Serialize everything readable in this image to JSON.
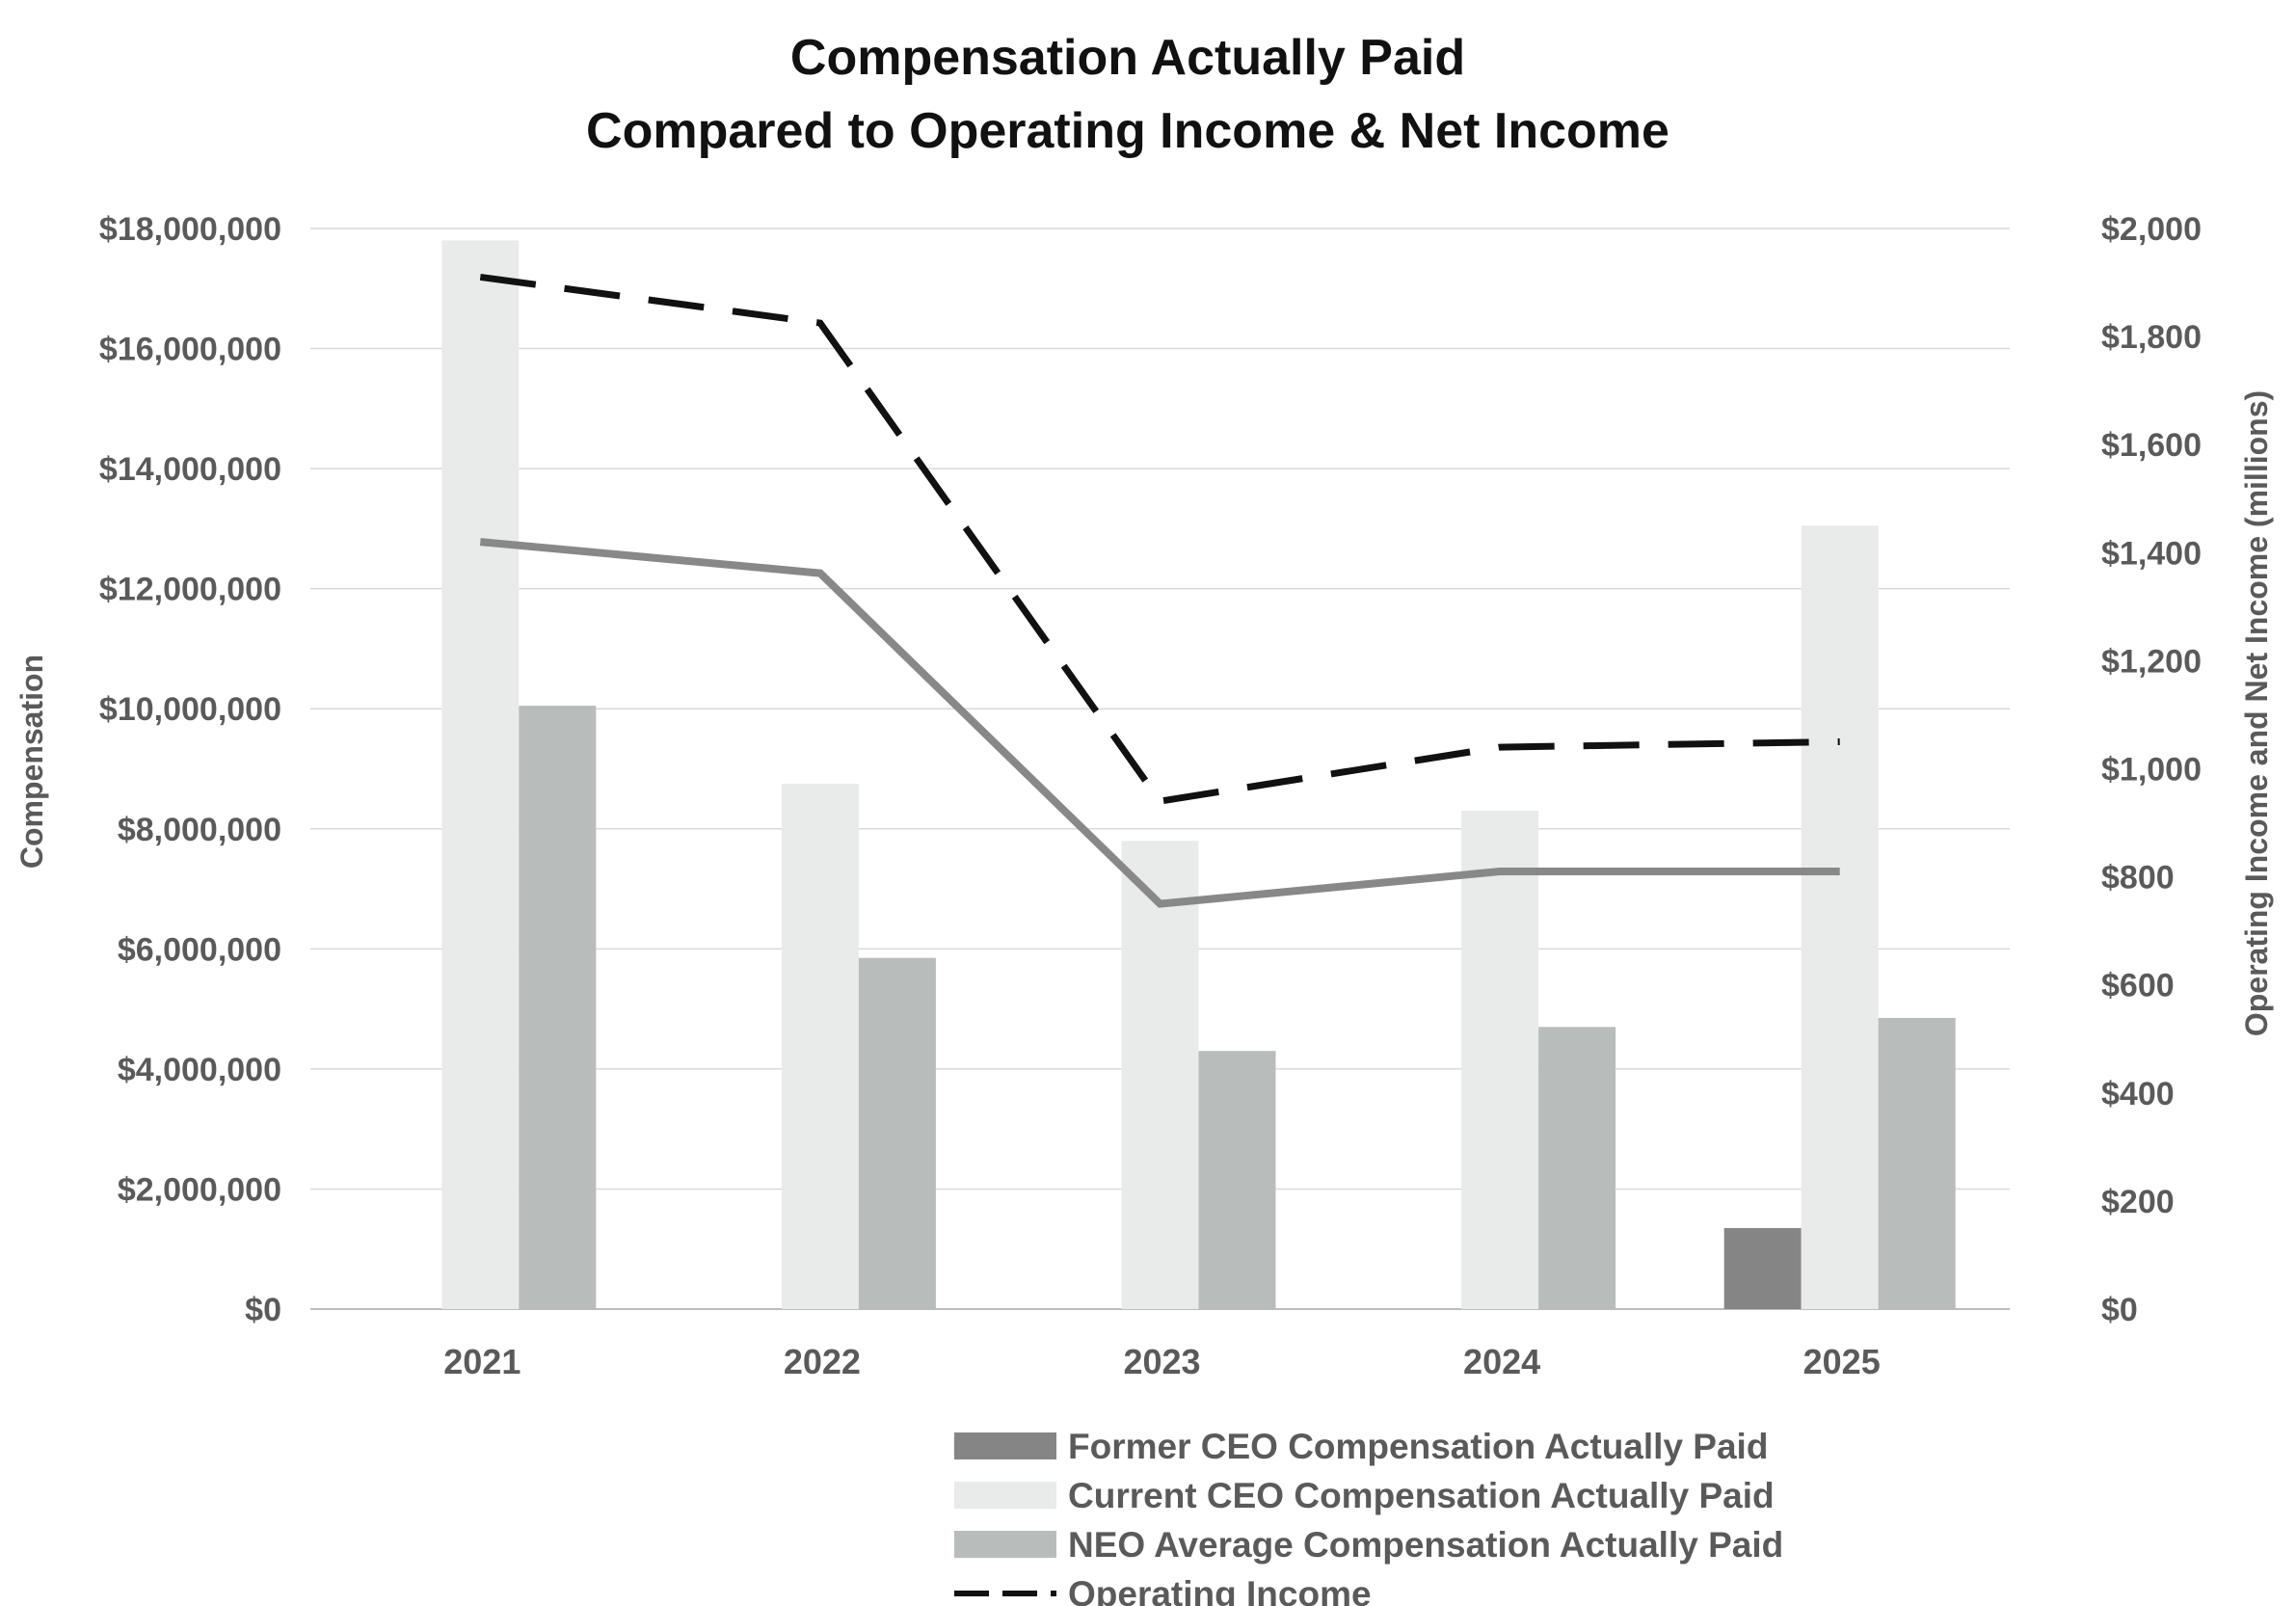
{
  "chart_data": {
    "type": "bar",
    "title": [
      "Compensation Actually Paid",
      "Compared to Operating Income & Net Income"
    ],
    "categories": [
      "2021",
      "2022",
      "2023",
      "2024",
      "2025"
    ],
    "ylabel": "Compensation",
    "y2label": "Operating Income and Net Income (millions)",
    "ylim": [
      0,
      18000000
    ],
    "y2lim": [
      0,
      2000
    ],
    "yticks": [
      {
        "value": 0,
        "label": "$0"
      },
      {
        "value": 2000000,
        "label": "$2,000,000"
      },
      {
        "value": 4000000,
        "label": "$4,000,000"
      },
      {
        "value": 6000000,
        "label": "$6,000,000"
      },
      {
        "value": 8000000,
        "label": "$8,000,000"
      },
      {
        "value": 10000000,
        "label": "$10,000,000"
      },
      {
        "value": 12000000,
        "label": "$12,000,000"
      },
      {
        "value": 14000000,
        "label": "$14,000,000"
      },
      {
        "value": 16000000,
        "label": "$16,000,000"
      },
      {
        "value": 18000000,
        "label": "$18,000,000"
      }
    ],
    "y2ticks": [
      {
        "value": 0,
        "label": "$0"
      },
      {
        "value": 200,
        "label": "$200"
      },
      {
        "value": 400,
        "label": "$400"
      },
      {
        "value": 600,
        "label": "$600"
      },
      {
        "value": 800,
        "label": "$800"
      },
      {
        "value": 1000,
        "label": "$1,000"
      },
      {
        "value": 1200,
        "label": "$1,200"
      },
      {
        "value": 1400,
        "label": "$1,400"
      },
      {
        "value": 1600,
        "label": "$1,600"
      },
      {
        "value": 1800,
        "label": "$1,800"
      },
      {
        "value": 2000,
        "label": "$2,000"
      }
    ],
    "grid": true,
    "legend_position": "bottom",
    "series": [
      {
        "name": "Former CEO Compensation Actually Paid",
        "kind": "bar",
        "axis": "left",
        "color": "#858585",
        "values": [
          0,
          0,
          0,
          0,
          1350000
        ]
      },
      {
        "name": "Current CEO Compensation Actually Paid",
        "kind": "bar",
        "axis": "left",
        "color": "#e8ebe9",
        "values": [
          17800000,
          8750000,
          7800000,
          8300000,
          13050000
        ]
      },
      {
        "name": "NEO Average Compensation Actually Paid",
        "kind": "bar",
        "axis": "left",
        "color": "#b8bcbb",
        "values": [
          10050000,
          5850000,
          4300000,
          4700000,
          4850000
        ]
      },
      {
        "name": "Operating Income",
        "kind": "line",
        "axis": "right",
        "color": "#111111",
        "dashed": true,
        "values": [
          1910,
          1825,
          940,
          1040,
          1050
        ]
      },
      {
        "name": "",
        "kind": "line",
        "axis": "right",
        "color": "#888888",
        "dashed": false,
        "values": [
          1420,
          1362,
          750,
          810,
          810
        ]
      }
    ]
  }
}
